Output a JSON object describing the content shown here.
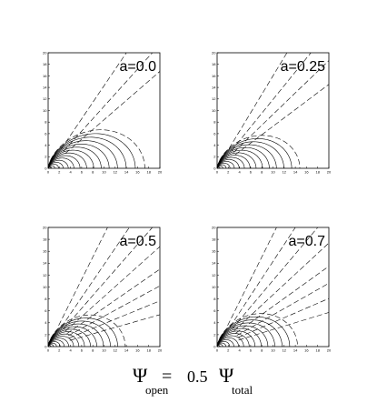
{
  "chart_data": [
    {
      "type": "line",
      "label": "a=0.0",
      "xlim": [
        0,
        20
      ],
      "ylim": [
        0,
        20
      ],
      "xticks": [
        "0",
        "2",
        "4",
        "6",
        "8",
        "10",
        "12",
        "14",
        "16",
        "18",
        "20"
      ],
      "yticks": [
        "0",
        "2",
        "4",
        "6",
        "8",
        "10",
        "12",
        "14",
        "16",
        "18",
        "20"
      ],
      "last_closed_r": 17.3,
      "open_angles_deg": [
        55,
        47,
        40
      ]
    },
    {
      "type": "line",
      "label": "a=0.25",
      "xlim": [
        0,
        20
      ],
      "ylim": [
        0,
        20
      ],
      "xticks": [
        "0",
        "2",
        "4",
        "6",
        "8",
        "10",
        "12",
        "14",
        "16",
        "18",
        "20"
      ],
      "yticks": [
        "0",
        "2",
        "4",
        "6",
        "8",
        "10",
        "12",
        "14",
        "16",
        "18",
        "20"
      ],
      "last_closed_r": 14.8,
      "open_angles_deg": [
        58,
        50,
        43,
        36
      ]
    },
    {
      "type": "line",
      "label": "a=0.5",
      "xlim": [
        0,
        20
      ],
      "ylim": [
        0,
        20
      ],
      "xticks": [
        "0",
        "2",
        "4",
        "6",
        "8",
        "10",
        "12",
        "14",
        "16",
        "18",
        "20"
      ],
      "yticks": [
        "0",
        "2",
        "4",
        "6",
        "8",
        "10",
        "12",
        "14",
        "16",
        "18",
        "20"
      ],
      "last_closed_r": 13.8,
      "open_angles_deg": [
        62,
        54,
        47,
        40,
        33,
        27,
        21,
        15
      ]
    },
    {
      "type": "line",
      "label": "a=0.7",
      "xlim": [
        0,
        20
      ],
      "ylim": [
        0,
        20
      ],
      "xticks": [
        "0",
        "2",
        "4",
        "6",
        "8",
        "10",
        "12",
        "14",
        "16",
        "18",
        "20"
      ],
      "yticks": [
        "0",
        "2",
        "4",
        "6",
        "8",
        "10",
        "12",
        "14",
        "16",
        "18",
        "20"
      ],
      "last_closed_r": 14.4,
      "open_angles_deg": [
        62,
        55,
        48,
        41,
        34,
        28,
        22,
        16
      ]
    }
  ],
  "caption": {
    "psi": "Ψ",
    "sub_open": "open",
    "equals": "=",
    "value": "0.5",
    "sub_total": "total"
  }
}
